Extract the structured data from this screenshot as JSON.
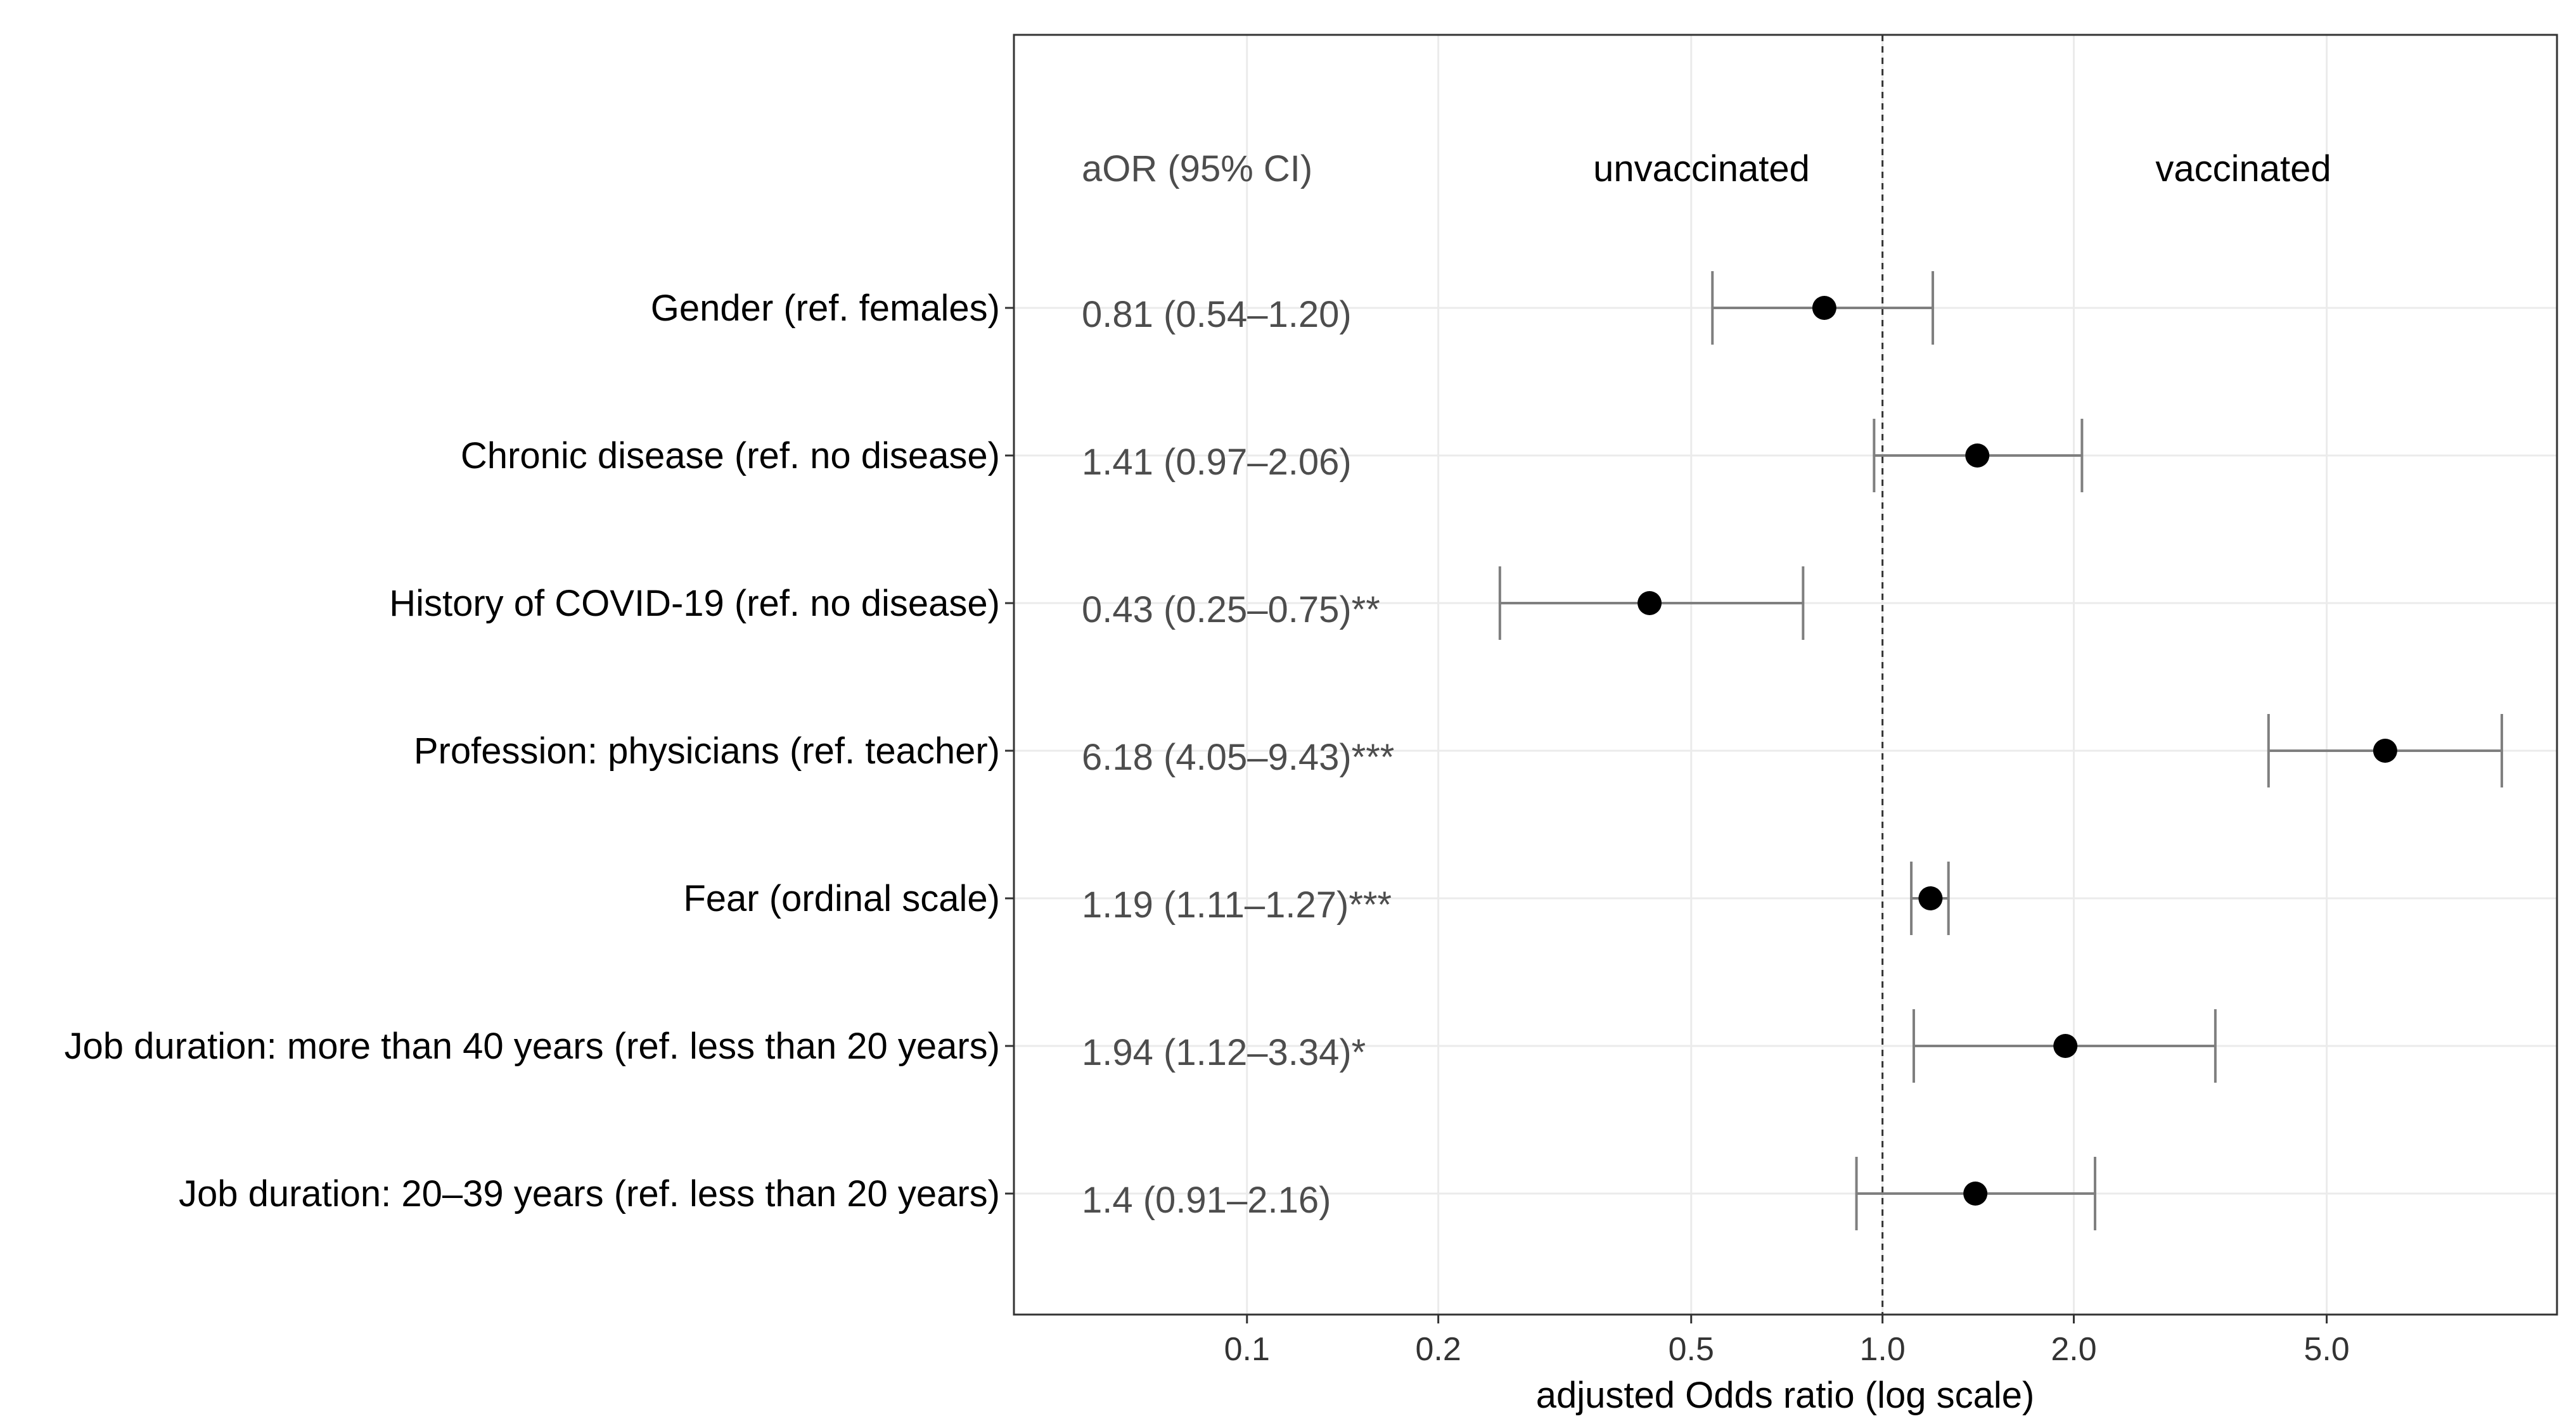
{
  "chart_data": {
    "type": "forest",
    "scale": "log",
    "x_ticks": [
      0.1,
      0.2,
      0.5,
      1.0,
      2.0,
      5.0
    ],
    "x_tick_labels": [
      "0.1",
      "0.2",
      "0.5",
      "1.0",
      "2.0",
      "5.0"
    ],
    "xlim": [
      0.045,
      11.0
    ],
    "reference_line": 1.0,
    "xlabel": "adjusted Odds ratio (log scale)",
    "header": {
      "aor_label": "aOR  (95% CI)",
      "left_label": "unvaccinated",
      "right_label": "vaccinated"
    },
    "rows": [
      {
        "label": "Gender (ref. females)",
        "aor": 0.81,
        "lo": 0.54,
        "hi": 1.2,
        "text": "0.81 (0.54–1.20)"
      },
      {
        "label": "Chronic disease (ref. no disease)",
        "aor": 1.41,
        "lo": 0.97,
        "hi": 2.06,
        "text": "1.41 (0.97–2.06)"
      },
      {
        "label": "History of COVID-19 (ref. no disease)",
        "aor": 0.43,
        "lo": 0.25,
        "hi": 0.75,
        "text": "0.43 (0.25–0.75)**"
      },
      {
        "label": "Profession: physicians (ref. teacher)",
        "aor": 6.18,
        "lo": 4.05,
        "hi": 9.43,
        "text": "6.18 (4.05–9.43)***"
      },
      {
        "label": "Fear (ordinal scale)",
        "aor": 1.19,
        "lo": 1.11,
        "hi": 1.27,
        "text": "1.19 (1.11–1.27)***"
      },
      {
        "label": "Job duration: more than 40 years (ref. less than 20 years)",
        "aor": 1.94,
        "lo": 1.12,
        "hi": 3.34,
        "text": "1.94 (1.12–3.34)*"
      },
      {
        "label": "Job duration: 20–39 years (ref. less than 20 years)",
        "aor": 1.4,
        "lo": 0.91,
        "hi": 2.16,
        "text": "1.4 (0.91–2.16)"
      }
    ]
  }
}
